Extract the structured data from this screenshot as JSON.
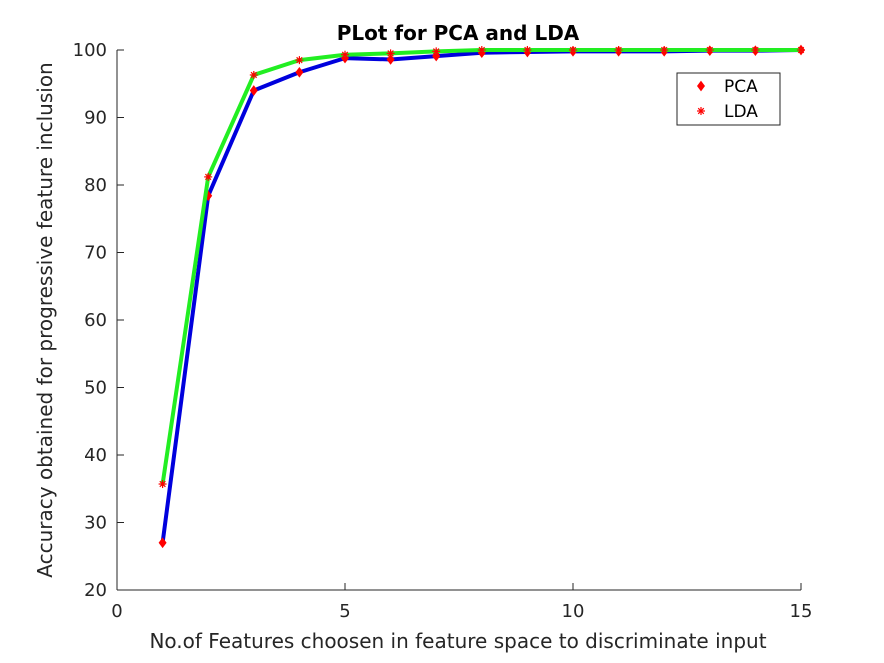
{
  "chart_data": {
    "type": "line",
    "title": "PLot for PCA and LDA",
    "xlabel": "No.of Features choosen in feature space to discriminate input",
    "ylabel": "Accuracy obtained for progressive feature inclusion",
    "xlim": [
      0,
      15
    ],
    "ylim": [
      20,
      100
    ],
    "xticks": [
      0,
      5,
      10,
      15
    ],
    "yticks": [
      20,
      30,
      40,
      50,
      60,
      70,
      80,
      90,
      100
    ],
    "grid": false,
    "legend_position": "top-right",
    "x": [
      1,
      2,
      3,
      4,
      5,
      6,
      7,
      8,
      9,
      10,
      11,
      12,
      13,
      14,
      15
    ],
    "series": [
      {
        "name": "PCA",
        "line_color": "#0000dd",
        "marker_color": "#ff0000",
        "marker": "diamond",
        "values": [
          27.0,
          78.4,
          94.0,
          96.7,
          98.8,
          98.6,
          99.1,
          99.6,
          99.7,
          99.8,
          99.8,
          99.8,
          99.9,
          99.9,
          100.0
        ]
      },
      {
        "name": "LDA",
        "line_color": "#22ee22",
        "marker_color": "#ff0000",
        "marker": "asterisk",
        "values": [
          35.7,
          81.2,
          96.3,
          98.5,
          99.3,
          99.5,
          99.8,
          100.0,
          100.0,
          100.0,
          100.0,
          100.0,
          100.0,
          100.0,
          100.0
        ]
      }
    ]
  }
}
